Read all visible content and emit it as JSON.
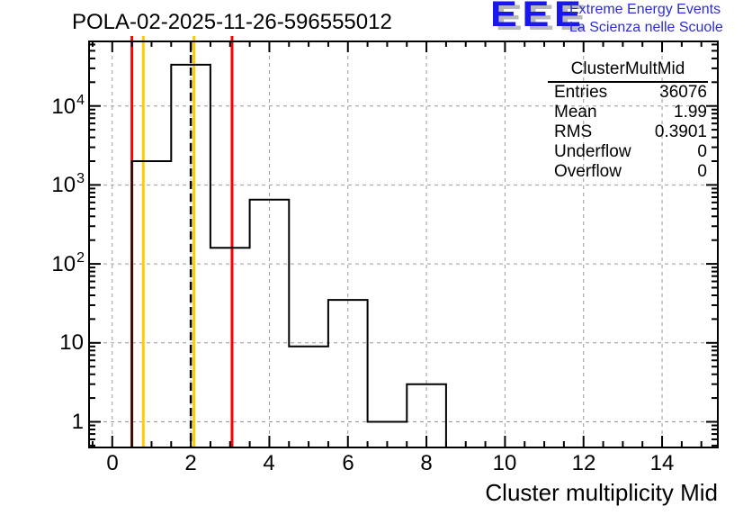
{
  "title": "POLA-02-2025-11-26-596555012",
  "logo": {
    "letters": "EEE",
    "line1": "Extreme Energy Events",
    "line2": "La Scienza nelle Scuole",
    "letters_color": "#1a17ee",
    "text_color": "#2d2dd2"
  },
  "stats": {
    "title": "ClusterMultMid",
    "rows": [
      {
        "label": "Entries",
        "value": "36076"
      },
      {
        "label": "Mean",
        "value": "1.99"
      },
      {
        "label": "RMS",
        "value": "0.3901"
      },
      {
        "label": "Underflow",
        "value": "0"
      },
      {
        "label": "Overflow",
        "value": "0"
      }
    ]
  },
  "chart_data": {
    "type": "bar",
    "subtype": "step-histogram",
    "title": "POLA-02-2025-11-26-596555012",
    "xlabel": "Cluster multiplicity Mid",
    "ylabel": "",
    "histogram": {
      "name": "ClusterMultMid",
      "bin_centers": [
        1,
        2,
        3,
        4,
        5,
        6,
        7,
        8
      ],
      "bin_edges": [
        0.5,
        1.5,
        2.5,
        3.5,
        4.5,
        5.5,
        6.5,
        7.5,
        8.5
      ],
      "values": [
        2000,
        33300,
        160,
        650,
        9,
        35,
        1,
        3
      ],
      "entries": 36076,
      "mean": 1.99,
      "rms": 0.3901
    },
    "x_major_ticks": [
      0,
      2,
      4,
      6,
      8,
      10,
      12,
      14
    ],
    "x_minor_step": 0.5,
    "xlim": [
      -0.6,
      15.4
    ],
    "y_scale": "log",
    "ylim": [
      0.47,
      66000
    ],
    "y_tick_labels": [
      {
        "v": 1,
        "base": "1",
        "exp": ""
      },
      {
        "v": 10,
        "base": "10",
        "exp": ""
      },
      {
        "v": 100,
        "base": "10",
        "exp": "2"
      },
      {
        "v": 1000,
        "base": "10",
        "exp": "3"
      },
      {
        "v": 10000,
        "base": "10",
        "exp": "4"
      }
    ],
    "grid": "dashed-major",
    "legend_position": "none",
    "marker_lines": {
      "red": [
        0.5,
        3.05
      ],
      "yellow": [
        0.79,
        2.08
      ],
      "dashed_black": [
        2.0
      ]
    },
    "colors": {
      "histogram": "#000000",
      "red_line": "#ff0000",
      "yellow_line": "#ffcc00",
      "dashed_line": "#000000",
      "grid": "#9a9a9a",
      "frame": "#000000"
    }
  }
}
